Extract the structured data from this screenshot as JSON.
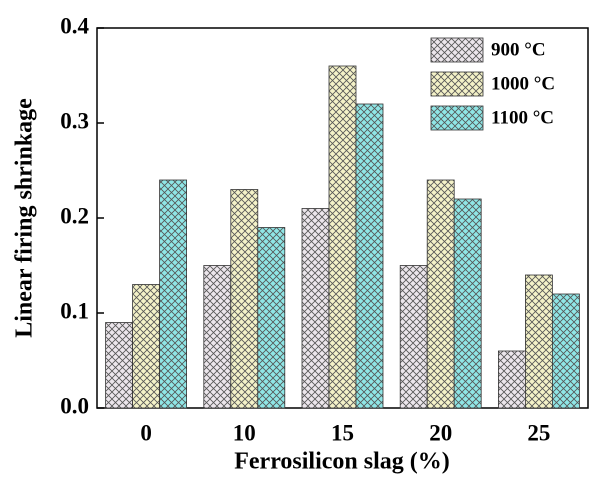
{
  "chart_data": {
    "type": "bar",
    "x_label": "Ferrosilicon slag (%)",
    "y_label": "Linear firing shrinkage",
    "categories": [
      "0",
      "10",
      "15",
      "20",
      "25"
    ],
    "series": [
      {
        "name": "900 °C",
        "color": "#ece6ec",
        "values": [
          0.09,
          0.15,
          0.21,
          0.15,
          0.06
        ]
      },
      {
        "name": "1000 °C",
        "color": "#f4f2c8",
        "values": [
          0.13,
          0.23,
          0.36,
          0.24,
          0.14
        ]
      },
      {
        "name": "1100 °C",
        "color": "#8fe6e6",
        "values": [
          0.24,
          0.19,
          0.32,
          0.22,
          0.12
        ]
      }
    ],
    "ylim": [
      0,
      0.4
    ],
    "yticks": [
      {
        "value": 0,
        "label": "0.0"
      },
      0.1,
      0.2,
      0.3,
      0.4
    ],
    "legend": "top-right"
  }
}
